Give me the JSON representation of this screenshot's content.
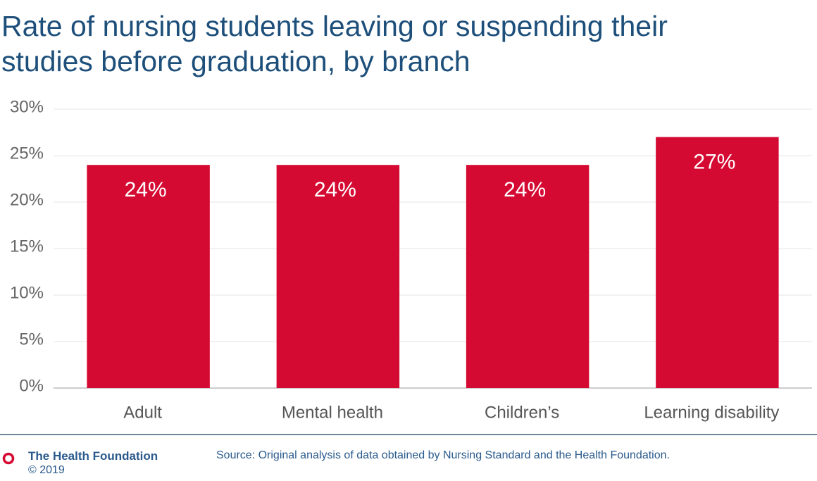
{
  "chart_data": {
    "type": "bar",
    "title": "Rate of nursing students leaving or suspending their studies before graduation, by branch",
    "categories": [
      "Adult",
      "Mental health",
      "Children’s",
      "Learning disability"
    ],
    "values": [
      24,
      24,
      24,
      27
    ],
    "value_labels": [
      "24%",
      "24%",
      "24%",
      "27%"
    ],
    "color": "#d50a32",
    "ylim": [
      0,
      30
    ],
    "yticks": [
      {
        "value": 0,
        "label": "0%"
      },
      {
        "value": 5,
        "label": "5%"
      },
      {
        "value": 10,
        "label": "10%"
      },
      {
        "value": 15,
        "label": "15%"
      },
      {
        "value": 20,
        "label": "20%"
      },
      {
        "value": 25,
        "label": "25%"
      },
      {
        "value": 30,
        "label": "30%"
      }
    ],
    "grid": true
  },
  "footer": {
    "organisation": "The Health Foundation",
    "copyright": "© 2019",
    "source": "Source: Original analysis of data obtained by Nursing Standard and the Health Foundation."
  }
}
